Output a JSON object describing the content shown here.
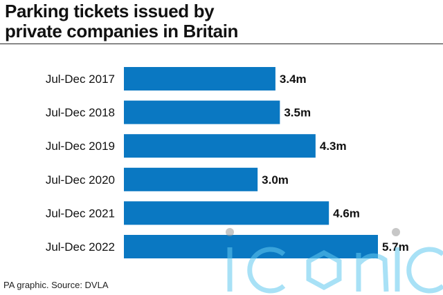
{
  "header": {
    "title_line1": "Parking tickets issued by",
    "title_line2": "private companies in Britain"
  },
  "footer": {
    "source": "PA graphic. Source: DVLA"
  },
  "colors": {
    "bar": "#0a78c2",
    "text": "#111111",
    "watermark": "#62c9f0"
  },
  "watermark": {
    "text": "iconic"
  },
  "chart_data": {
    "type": "bar",
    "orientation": "horizontal",
    "categories": [
      "Jul-Dec 2017",
      "Jul-Dec 2018",
      "Jul-Dec 2019",
      "Jul-Dec 2020",
      "Jul-Dec 2021",
      "Jul-Dec 2022"
    ],
    "values": [
      3.4,
      3.5,
      4.3,
      3.0,
      4.6,
      5.7
    ],
    "value_labels": [
      "3.4m",
      "3.5m",
      "4.3m",
      "3.0m",
      "4.6m",
      "5.7m"
    ],
    "unit": "m",
    "xlim": [
      0,
      5.7
    ],
    "grid": false,
    "legend": "none"
  }
}
